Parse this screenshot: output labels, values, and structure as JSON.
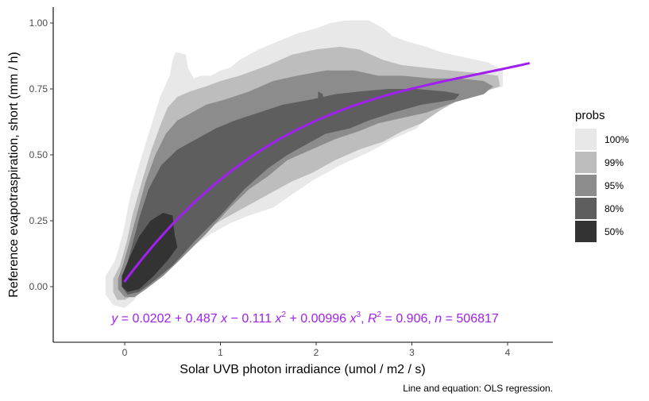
{
  "chart_data": {
    "type": "density-contour",
    "xlabel": "Solar UVB photon irradiance (umol / m2 / s)",
    "ylabel": "Reference evapotraspiration, short (mm / h)",
    "xlim": [
      -0.75,
      4.5
    ],
    "ylim": [
      -0.2,
      1.06
    ],
    "x_ticks": [
      0,
      1,
      2,
      3,
      4
    ],
    "y_ticks": [
      0.0,
      0.25,
      0.5,
      0.75,
      1.0
    ],
    "y_tick_labels": [
      "0.00",
      "0.25",
      "0.50",
      "0.75",
      "1.00"
    ],
    "grid": false,
    "legend": {
      "title": "probs",
      "position": "right",
      "entries": [
        {
          "label": "100%",
          "color": "#e8e8e8"
        },
        {
          "label": "99%",
          "color": "#bdbdbd"
        },
        {
          "label": "95%",
          "color": "#8c8c8c"
        },
        {
          "label": "80%",
          "color": "#5e5e5e"
        },
        {
          "label": "50%",
          "color": "#333333"
        }
      ]
    },
    "density_regions": [
      {
        "prob": "100%",
        "color": "#e8e8e8",
        "points": [
          [
            -0.2,
            -0.03
          ],
          [
            -0.2,
            0.04
          ],
          [
            -0.1,
            0.1
          ],
          [
            -0.02,
            0.2
          ],
          [
            0.05,
            0.33
          ],
          [
            0.14,
            0.45
          ],
          [
            0.25,
            0.58
          ],
          [
            0.37,
            0.72
          ],
          [
            0.47,
            0.8
          ],
          [
            0.5,
            0.86
          ],
          [
            0.53,
            0.89
          ],
          [
            0.64,
            0.88
          ],
          [
            0.66,
            0.83
          ],
          [
            0.72,
            0.79
          ],
          [
            0.8,
            0.8
          ],
          [
            0.9,
            0.8
          ],
          [
            1.0,
            0.82
          ],
          [
            1.1,
            0.83
          ],
          [
            1.2,
            0.86
          ],
          [
            1.3,
            0.88
          ],
          [
            1.4,
            0.9
          ],
          [
            1.6,
            0.93
          ],
          [
            1.8,
            0.96
          ],
          [
            2.0,
            0.98
          ],
          [
            2.15,
            1.0
          ],
          [
            2.3,
            1.01
          ],
          [
            2.55,
            1.01
          ],
          [
            2.7,
            0.98
          ],
          [
            2.8,
            0.95
          ],
          [
            2.95,
            0.93
          ],
          [
            3.15,
            0.91
          ],
          [
            3.3,
            0.89
          ],
          [
            3.55,
            0.87
          ],
          [
            3.8,
            0.85
          ],
          [
            3.95,
            0.82
          ],
          [
            3.95,
            0.76
          ],
          [
            3.75,
            0.74
          ],
          [
            3.45,
            0.71
          ],
          [
            3.2,
            0.66
          ],
          [
            3.05,
            0.6
          ],
          [
            2.8,
            0.56
          ],
          [
            2.55,
            0.51
          ],
          [
            2.25,
            0.46
          ],
          [
            1.95,
            0.4
          ],
          [
            1.75,
            0.35
          ],
          [
            1.55,
            0.3
          ],
          [
            1.3,
            0.27
          ],
          [
            1.1,
            0.24
          ],
          [
            0.9,
            0.2
          ],
          [
            0.7,
            0.15
          ],
          [
            0.52,
            0.1
          ],
          [
            0.35,
            0.05
          ],
          [
            0.2,
            0.0
          ],
          [
            0.1,
            -0.05
          ],
          [
            0.0,
            -0.08
          ],
          [
            -0.12,
            -0.07
          ]
        ]
      },
      {
        "prob": "99%",
        "color": "#bdbdbd",
        "points": [
          [
            -0.12,
            -0.02
          ],
          [
            -0.12,
            0.03
          ],
          [
            -0.05,
            0.08
          ],
          [
            0.02,
            0.17
          ],
          [
            0.08,
            0.27
          ],
          [
            0.18,
            0.4
          ],
          [
            0.28,
            0.52
          ],
          [
            0.38,
            0.62
          ],
          [
            0.45,
            0.68
          ],
          [
            0.55,
            0.72
          ],
          [
            0.68,
            0.74
          ],
          [
            0.85,
            0.76
          ],
          [
            1.0,
            0.78
          ],
          [
            1.2,
            0.8
          ],
          [
            1.5,
            0.84
          ],
          [
            1.75,
            0.88
          ],
          [
            2.0,
            0.9
          ],
          [
            2.25,
            0.91
          ],
          [
            2.45,
            0.9
          ],
          [
            2.7,
            0.86
          ],
          [
            2.9,
            0.84
          ],
          [
            3.15,
            0.83
          ],
          [
            3.4,
            0.82
          ],
          [
            3.7,
            0.81
          ],
          [
            3.9,
            0.8
          ],
          [
            3.92,
            0.76
          ],
          [
            3.75,
            0.74
          ],
          [
            3.5,
            0.71
          ],
          [
            3.3,
            0.67
          ],
          [
            3.1,
            0.62
          ],
          [
            2.9,
            0.59
          ],
          [
            2.7,
            0.55
          ],
          [
            2.45,
            0.52
          ],
          [
            2.2,
            0.48
          ],
          [
            1.95,
            0.43
          ],
          [
            1.75,
            0.4
          ],
          [
            1.5,
            0.35
          ],
          [
            1.25,
            0.3
          ],
          [
            1.0,
            0.25
          ],
          [
            0.75,
            0.19
          ],
          [
            0.55,
            0.13
          ],
          [
            0.35,
            0.06
          ],
          [
            0.2,
            0.02
          ],
          [
            0.1,
            -0.03
          ],
          [
            0.0,
            -0.05
          ],
          [
            -0.08,
            -0.05
          ]
        ]
      },
      {
        "prob": "95%",
        "color": "#8c8c8c",
        "points": [
          [
            -0.07,
            -0.01
          ],
          [
            -0.07,
            0.03
          ],
          [
            -0.02,
            0.08
          ],
          [
            0.05,
            0.17
          ],
          [
            0.13,
            0.28
          ],
          [
            0.22,
            0.4
          ],
          [
            0.32,
            0.5
          ],
          [
            0.43,
            0.58
          ],
          [
            0.55,
            0.63
          ],
          [
            0.7,
            0.66
          ],
          [
            0.85,
            0.69
          ],
          [
            1.05,
            0.71
          ],
          [
            1.3,
            0.74
          ],
          [
            1.55,
            0.78
          ],
          [
            1.8,
            0.8
          ],
          [
            2.1,
            0.82
          ],
          [
            2.4,
            0.82
          ],
          [
            2.65,
            0.8
          ],
          [
            2.9,
            0.8
          ],
          [
            3.2,
            0.79
          ],
          [
            3.5,
            0.79
          ],
          [
            3.75,
            0.78
          ],
          [
            3.85,
            0.76
          ],
          [
            3.75,
            0.73
          ],
          [
            3.45,
            0.7
          ],
          [
            3.15,
            0.66
          ],
          [
            2.9,
            0.64
          ],
          [
            2.65,
            0.62
          ],
          [
            2.45,
            0.59
          ],
          [
            2.2,
            0.56
          ],
          [
            1.95,
            0.52
          ],
          [
            1.7,
            0.48
          ],
          [
            1.5,
            0.42
          ],
          [
            1.3,
            0.37
          ],
          [
            1.1,
            0.3
          ],
          [
            0.85,
            0.2
          ],
          [
            0.6,
            0.11
          ],
          [
            0.4,
            0.04
          ],
          [
            0.22,
            -0.01
          ],
          [
            0.1,
            -0.04
          ],
          [
            0.0,
            -0.04
          ]
        ]
      },
      {
        "prob": "80%",
        "color": "#5e5e5e",
        "points": [
          [
            -0.03,
            0.0
          ],
          [
            -0.03,
            0.03
          ],
          [
            0.02,
            0.08
          ],
          [
            0.08,
            0.16
          ],
          [
            0.16,
            0.27
          ],
          [
            0.25,
            0.37
          ],
          [
            0.38,
            0.46
          ],
          [
            0.55,
            0.52
          ],
          [
            0.75,
            0.56
          ],
          [
            0.95,
            0.6
          ],
          [
            1.15,
            0.63
          ],
          [
            1.4,
            0.66
          ],
          [
            1.65,
            0.69
          ],
          [
            1.95,
            0.71
          ],
          [
            2.2,
            0.73
          ],
          [
            2.45,
            0.74
          ],
          [
            2.75,
            0.75
          ],
          [
            3.05,
            0.75
          ],
          [
            3.35,
            0.74
          ],
          [
            3.5,
            0.73
          ],
          [
            3.45,
            0.71
          ],
          [
            3.1,
            0.69
          ],
          [
            2.8,
            0.66
          ],
          [
            2.55,
            0.63
          ],
          [
            2.35,
            0.6
          ],
          [
            2.1,
            0.58
          ],
          [
            1.9,
            0.54
          ],
          [
            1.7,
            0.5
          ],
          [
            1.5,
            0.45
          ],
          [
            1.25,
            0.37
          ],
          [
            1.0,
            0.27
          ],
          [
            0.75,
            0.18
          ],
          [
            0.5,
            0.08
          ],
          [
            0.3,
            0.02
          ],
          [
            0.15,
            -0.02
          ],
          [
            0.03,
            -0.03
          ]
        ]
      },
      {
        "prob": "50%",
        "color": "#333333",
        "points": [
          [
            -0.03,
            0.0
          ],
          [
            -0.03,
            0.04
          ],
          [
            0.05,
            0.11
          ],
          [
            0.15,
            0.19
          ],
          [
            0.27,
            0.25
          ],
          [
            0.4,
            0.28
          ],
          [
            0.5,
            0.27
          ],
          [
            0.52,
            0.2
          ],
          [
            0.55,
            0.15
          ],
          [
            0.45,
            0.1
          ],
          [
            0.3,
            0.04
          ],
          [
            0.15,
            -0.01
          ],
          [
            0.03,
            -0.02
          ]
        ]
      },
      {
        "prob": "80%",
        "color": "#5e5e5e",
        "points": [
          [
            2.02,
            0.74
          ],
          [
            2.07,
            0.73
          ],
          [
            2.07,
            0.71
          ],
          [
            2.02,
            0.71
          ]
        ]
      },
      {
        "prob": "80%",
        "color": "#5e5e5e",
        "points": [
          [
            2.23,
            0.67
          ],
          [
            2.3,
            0.66
          ],
          [
            2.27,
            0.64
          ],
          [
            2.22,
            0.65
          ]
        ]
      }
    ],
    "fit_curve": {
      "color": "#a020f0",
      "coefficients": [
        0.0202,
        0.487,
        -0.111,
        0.00996
      ],
      "x_range": [
        0,
        4.22
      ]
    },
    "annotations": {
      "equation": {
        "y": "y",
        "eq": " = 0.0202 + 0.487 ",
        "x1": "x",
        "m1": " − 0.111 ",
        "x2": "x",
        "sup2": "2",
        "p3": " + 0.00996 ",
        "x3": "x",
        "sup3": "3",
        "sep": ", ",
        "R": "R",
        "sup2b": "2",
        "rval": " = 0.906, ",
        "n": "n",
        "nval": " = 506817"
      },
      "caption": "Line and equation: OLS regression."
    }
  }
}
